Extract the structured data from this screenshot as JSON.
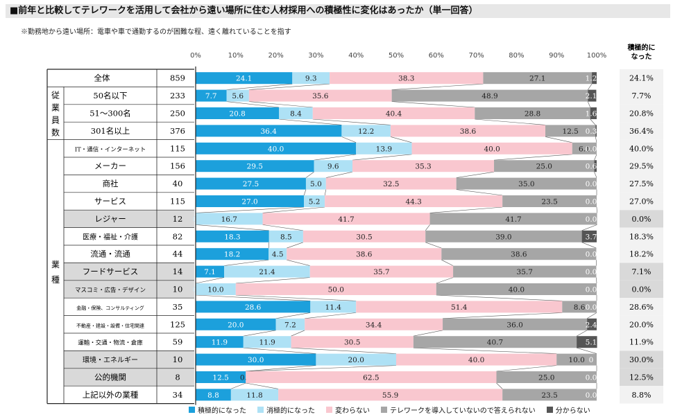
{
  "title": "■前年と比較してテレワークを活用して会社から遠い場所に住む人材採用への積極性に変化はあったか（単一回答）",
  "subtitle": "※勤務地から遠い場所：電車や車で通勤するのが困難な程、遠く離れていることを指す",
  "col_header_right": [
    "積極的に",
    "なった"
  ],
  "chart_data": {
    "type": "bar",
    "stacked": true,
    "orientation": "horizontal",
    "xlim": [
      0,
      100
    ],
    "x_ticks": [
      "0%",
      "10%",
      "20%",
      "30%",
      "40%",
      "50%",
      "60%",
      "70%",
      "80%",
      "90%",
      "100%"
    ],
    "series_names": [
      "積極的になった",
      "消極的になった",
      "変わらない",
      "テレワークを導入していないので答えられない",
      "分からない"
    ],
    "colors": [
      "#1ca0dc",
      "#aee1f5",
      "#f9c7cf",
      "#a6a6a6",
      "#555555"
    ],
    "groups": [
      {
        "label": "",
        "start": 0,
        "end": 0
      },
      {
        "label": "従業員数",
        "start": 1,
        "end": 3
      },
      {
        "label": "業種",
        "start": 4,
        "end": 18
      }
    ],
    "rows": [
      {
        "label": "全体",
        "n": "859",
        "values": [
          24.1,
          9.3,
          38.3,
          27.1,
          1.2
        ],
        "labels": [
          "24.1",
          "9.3",
          "38.3",
          "27.1",
          "1.2"
        ],
        "right": "24.1%"
      },
      {
        "label": "50名以下",
        "n": "233",
        "values": [
          7.7,
          5.6,
          35.6,
          48.9,
          2.1
        ],
        "labels": [
          "7.7",
          "5.6",
          "35.6",
          "48.9",
          "2.1"
        ],
        "right": "7.7%"
      },
      {
        "label": "51～300名",
        "n": "250",
        "values": [
          20.8,
          8.4,
          40.4,
          28.8,
          1.6
        ],
        "labels": [
          "20.8",
          "8.4",
          "40.4",
          "28.8",
          "1.6"
        ],
        "right": "20.8%"
      },
      {
        "label": "301名以上",
        "n": "376",
        "values": [
          36.4,
          12.2,
          38.6,
          12.5,
          0.3
        ],
        "labels": [
          "36.4",
          "12.2",
          "38.6",
          "12.5",
          "0.3"
        ],
        "right": "36.4%"
      },
      {
        "label": "IT・通信・インターネット",
        "n": "115",
        "values": [
          40.0,
          13.9,
          40.0,
          6.1,
          0.0
        ],
        "labels": [
          "40.0",
          "13.9",
          "40.0",
          "6.1",
          "0.0"
        ],
        "right": "40.0%"
      },
      {
        "label": "メーカー",
        "n": "156",
        "values": [
          29.5,
          9.6,
          35.3,
          25.0,
          0.6
        ],
        "labels": [
          "29.5",
          "9.6",
          "35.3",
          "25.0",
          "0.6"
        ],
        "right": "29.5%"
      },
      {
        "label": "商社",
        "n": "40",
        "values": [
          27.5,
          5.0,
          32.5,
          35.0,
          0.0
        ],
        "labels": [
          "27.5",
          "5.0",
          "32.5",
          "35.0",
          "0.0"
        ],
        "right": "27.5%"
      },
      {
        "label": "サービス",
        "n": "115",
        "values": [
          27.0,
          5.2,
          44.3,
          23.5,
          0.0
        ],
        "labels": [
          "27.0",
          "5.2",
          "44.3",
          "23.5",
          "0.0"
        ],
        "right": "27.0%"
      },
      {
        "label": "レジャー",
        "n": "12",
        "values": [
          0.0,
          16.7,
          41.7,
          41.7,
          0.0
        ],
        "labels": [
          "0.0",
          "16.7",
          "41.7",
          "41.7",
          "0.0"
        ],
        "right": "0.0%",
        "shaded": true
      },
      {
        "label": "医療・福祉・介護",
        "n": "82",
        "values": [
          18.3,
          8.5,
          30.5,
          39.0,
          3.7
        ],
        "labels": [
          "18.3",
          "8.5",
          "30.5",
          "39.0",
          "3.7"
        ],
        "right": "18.3%"
      },
      {
        "label": "流通・流通",
        "n": "44",
        "values": [
          18.2,
          4.5,
          38.6,
          38.6,
          0.0
        ],
        "labels": [
          "18.2",
          "4.5",
          "38.6",
          "38.6",
          "0.0"
        ],
        "right": "18.2%"
      },
      {
        "label": "フードサービス",
        "n": "14",
        "values": [
          7.1,
          21.4,
          35.7,
          35.7,
          0.0
        ],
        "labels": [
          "7.1",
          "21.4",
          "35.7",
          "35.7",
          "0.0"
        ],
        "right": "7.1%",
        "shaded": true
      },
      {
        "label": "マスコミ・広告・デザイン",
        "n": "10",
        "values": [
          0.0,
          10.0,
          50.0,
          40.0,
          0.0
        ],
        "labels": [
          "0.0",
          "10.0",
          "50.0",
          "40.0",
          "0.0"
        ],
        "right": "0.0%",
        "shaded": true
      },
      {
        "label": "金融・保険、コンサルティング",
        "n": "35",
        "values": [
          28.6,
          11.4,
          51.4,
          8.6,
          0.0
        ],
        "labels": [
          "28.6",
          "11.4",
          "51.4",
          "8.6",
          "0.0"
        ],
        "right": "28.6%"
      },
      {
        "label": "不動産・建設・設備・住宅関連",
        "n": "125",
        "values": [
          20.0,
          7.2,
          34.4,
          36.0,
          2.4
        ],
        "labels": [
          "20.0",
          "7.2",
          "34.4",
          "36.0",
          "2.4"
        ],
        "right": "20.0%"
      },
      {
        "label": "運輸・交通・物流・倉庫",
        "n": "59",
        "values": [
          11.9,
          11.9,
          30.5,
          40.7,
          5.1
        ],
        "labels": [
          "11.9",
          "11.9",
          "30.5",
          "40.7",
          "5.1"
        ],
        "right": "11.9%"
      },
      {
        "label": "環境・エネルギー",
        "n": "10",
        "values": [
          30.0,
          20.0,
          40.0,
          10.0,
          0.0
        ],
        "labels": [
          "30.0",
          "20.0",
          "40.0",
          "10.0",
          "0"
        ],
        "right": "30.0%",
        "shaded": true
      },
      {
        "label": "公的機関",
        "n": "8",
        "values": [
          12.5,
          0.0,
          62.5,
          25.0,
          0.0
        ],
        "labels": [
          "12.5",
          "0.0",
          "62.5",
          "25.0",
          "0.0"
        ],
        "right": "12.5%",
        "shaded": true
      },
      {
        "label": "上記以外の業種",
        "n": "34",
        "values": [
          8.8,
          11.8,
          55.9,
          23.5,
          0.0
        ],
        "labels": [
          "8.8",
          "11.8",
          "55.9",
          "23.5",
          "0.0"
        ],
        "right": "8.8%"
      }
    ]
  }
}
